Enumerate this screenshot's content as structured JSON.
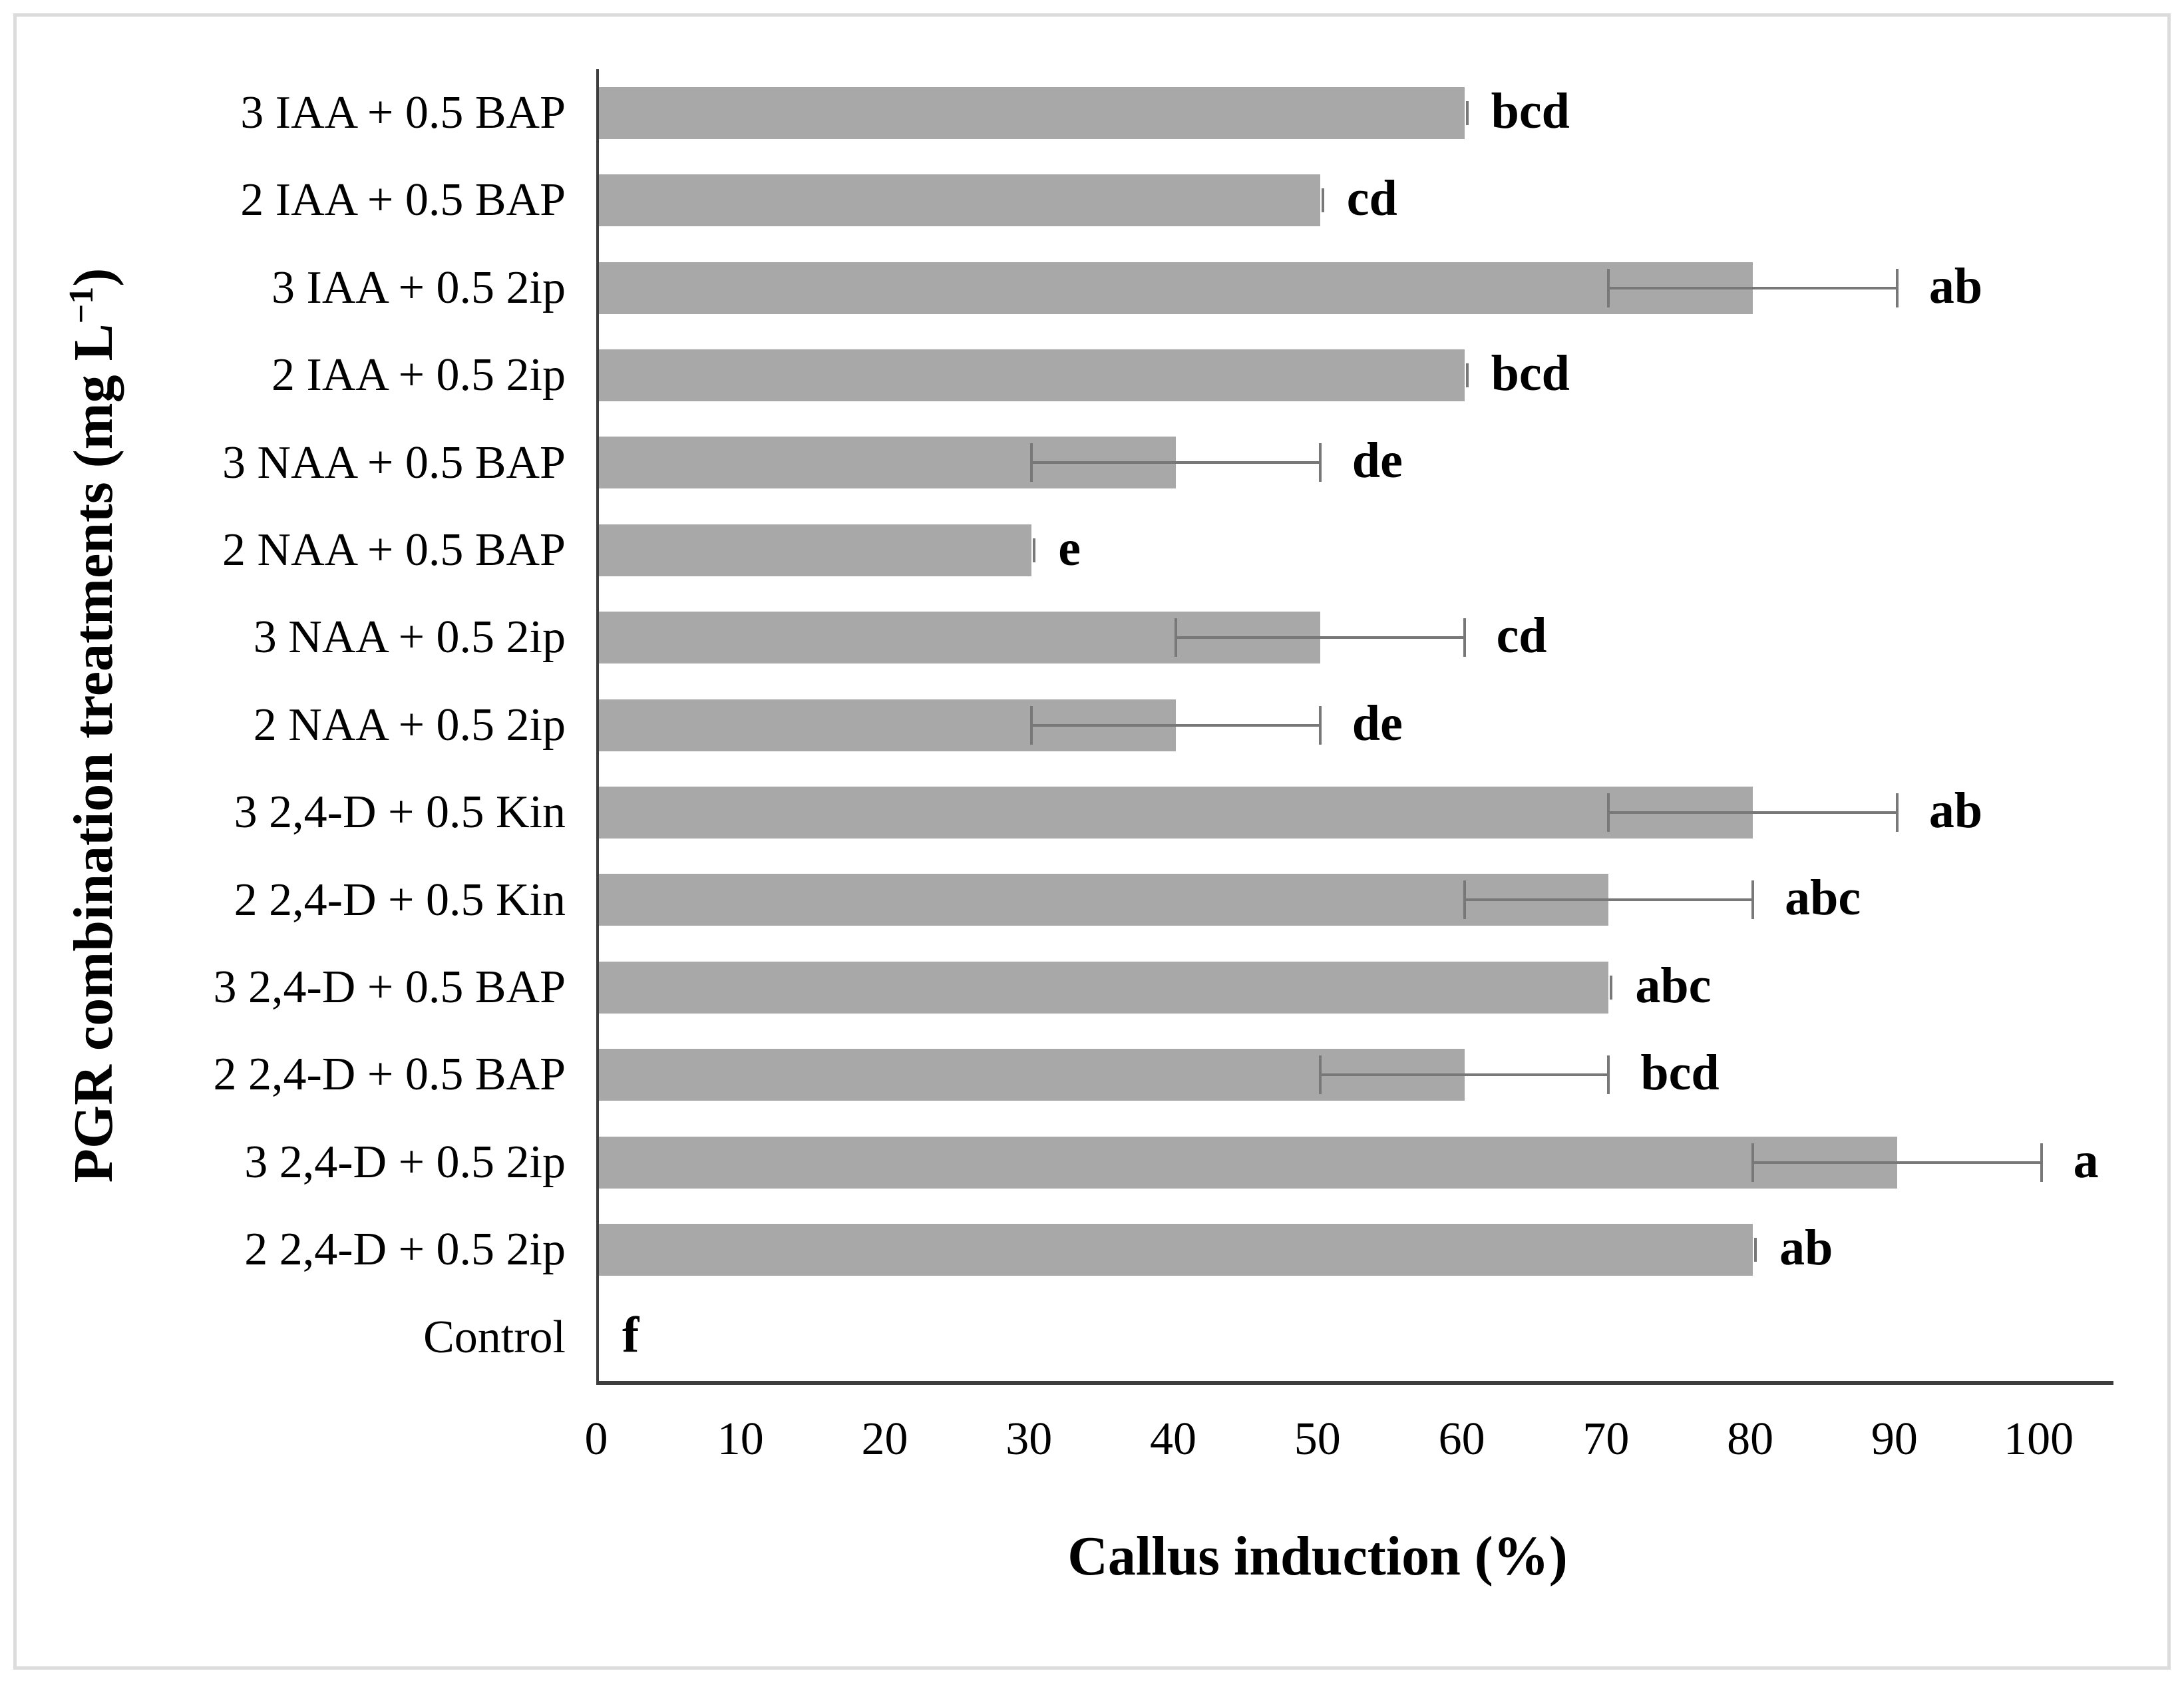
{
  "chart_data": {
    "type": "bar",
    "orientation": "horizontal",
    "title": "",
    "xlabel": "Callus induction (%)",
    "ylabel": "PGR combination treatments (mg L⁻¹)",
    "ylabel_parts": {
      "pre": "PGR combination treatments (mg L",
      "sup": "−1",
      "post": ")"
    },
    "xlim": [
      0,
      105
    ],
    "xticks": [
      0,
      10,
      20,
      30,
      40,
      50,
      60,
      70,
      80,
      90,
      100
    ],
    "grid": false,
    "legend": null,
    "categories": [
      "3 IAA + 0.5 BAP",
      "2 IAA + 0.5 BAP",
      "3 IAA + 0.5 2ip",
      "2 IAA + 0.5 2ip",
      "3 NAA + 0.5 BAP",
      "2 NAA + 0.5 BAP",
      "3 NAA + 0.5 2ip",
      "2 NAA + 0.5 2ip",
      "3 2,4-D + 0.5 Kin",
      "2 2,4-D + 0.5 Kin",
      "3 2,4-D + 0.5 BAP",
      "2 2,4-D + 0.5 BAP",
      "3 2,4-D + 0.5 2ip",
      "2 2,4-D + 0.5 2ip",
      "Control"
    ],
    "values": [
      60,
      50,
      80,
      60,
      40,
      30,
      50,
      40,
      80,
      70,
      70,
      60,
      90,
      80,
      0
    ],
    "errors": [
      0,
      0,
      10,
      0,
      10,
      0,
      10,
      10,
      10,
      10,
      0,
      10,
      10,
      0,
      0
    ],
    "sig_letters": [
      "bcd",
      "cd",
      "ab",
      "bcd",
      "de",
      "e",
      "cd",
      "de",
      "ab",
      "abc",
      "abc",
      "bcd",
      "a",
      "ab",
      "f"
    ],
    "colors": {
      "bar": "#a8a8a8",
      "error_bar": "#787878",
      "axis": "#3d3d3d",
      "frame_border": "#dcdcdc",
      "text": "#000000"
    }
  }
}
